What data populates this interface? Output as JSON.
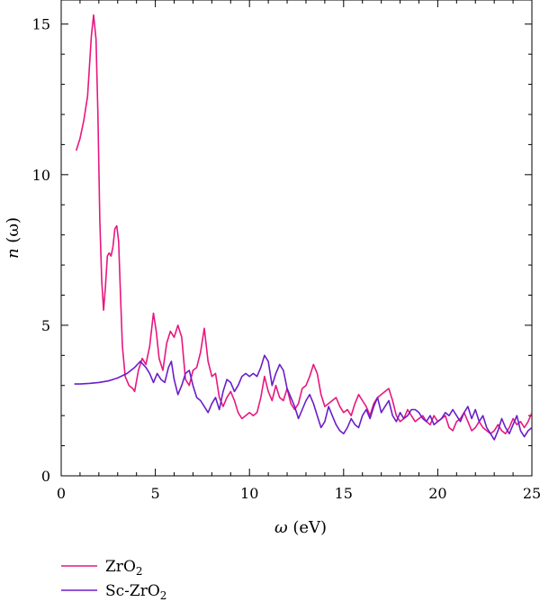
{
  "chart_data": {
    "type": "line",
    "xlabel_var": "ω",
    "xlabel_unit": "(eV)",
    "ylabel_var": "n",
    "ylabel_arg": "(ω)",
    "xlim": [
      0,
      25
    ],
    "ylim": [
      0,
      15.8
    ],
    "xticks": [
      0,
      5,
      10,
      15,
      20,
      25
    ],
    "yticks": [
      0,
      5,
      10,
      15
    ],
    "grid": false,
    "legend": "bottom-left, below plot",
    "series": [
      {
        "name": "ZrO",
        "name_sub": "2",
        "color": "#e8177f",
        "points": [
          [
            0.8,
            10.8
          ],
          [
            1.0,
            11.2
          ],
          [
            1.2,
            11.8
          ],
          [
            1.4,
            12.6
          ],
          [
            1.6,
            14.6
          ],
          [
            1.72,
            15.3
          ],
          [
            1.85,
            14.5
          ],
          [
            1.95,
            12.0
          ],
          [
            2.05,
            8.5
          ],
          [
            2.15,
            6.5
          ],
          [
            2.25,
            5.5
          ],
          [
            2.35,
            6.3
          ],
          [
            2.45,
            7.3
          ],
          [
            2.55,
            7.4
          ],
          [
            2.65,
            7.3
          ],
          [
            2.75,
            7.6
          ],
          [
            2.85,
            8.2
          ],
          [
            2.95,
            8.3
          ],
          [
            3.05,
            7.8
          ],
          [
            3.15,
            6.0
          ],
          [
            3.25,
            4.3
          ],
          [
            3.4,
            3.3
          ],
          [
            3.6,
            3.0
          ],
          [
            3.8,
            2.9
          ],
          [
            3.9,
            2.8
          ],
          [
            4.1,
            3.5
          ],
          [
            4.3,
            3.9
          ],
          [
            4.5,
            3.7
          ],
          [
            4.7,
            4.3
          ],
          [
            4.9,
            5.4
          ],
          [
            5.05,
            4.8
          ],
          [
            5.2,
            3.9
          ],
          [
            5.4,
            3.5
          ],
          [
            5.6,
            4.4
          ],
          [
            5.8,
            4.8
          ],
          [
            6.0,
            4.6
          ],
          [
            6.2,
            5.0
          ],
          [
            6.4,
            4.6
          ],
          [
            6.6,
            3.2
          ],
          [
            6.8,
            3.0
          ],
          [
            7.0,
            3.5
          ],
          [
            7.2,
            3.6
          ],
          [
            7.4,
            4.1
          ],
          [
            7.6,
            4.9
          ],
          [
            7.8,
            3.8
          ],
          [
            8.0,
            3.3
          ],
          [
            8.2,
            3.4
          ],
          [
            8.4,
            2.6
          ],
          [
            8.6,
            2.3
          ],
          [
            8.8,
            2.6
          ],
          [
            9.0,
            2.8
          ],
          [
            9.2,
            2.5
          ],
          [
            9.4,
            2.1
          ],
          [
            9.6,
            1.9
          ],
          [
            9.8,
            2.0
          ],
          [
            10.0,
            2.1
          ],
          [
            10.2,
            2.0
          ],
          [
            10.4,
            2.1
          ],
          [
            10.6,
            2.6
          ],
          [
            10.8,
            3.3
          ],
          [
            11.0,
            2.8
          ],
          [
            11.2,
            2.5
          ],
          [
            11.4,
            3.0
          ],
          [
            11.6,
            2.6
          ],
          [
            11.8,
            2.5
          ],
          [
            12.0,
            2.9
          ],
          [
            12.2,
            2.4
          ],
          [
            12.4,
            2.2
          ],
          [
            12.6,
            2.4
          ],
          [
            12.8,
            2.9
          ],
          [
            13.0,
            3.0
          ],
          [
            13.2,
            3.3
          ],
          [
            13.4,
            3.7
          ],
          [
            13.6,
            3.4
          ],
          [
            13.8,
            2.7
          ],
          [
            14.0,
            2.3
          ],
          [
            14.2,
            2.4
          ],
          [
            14.4,
            2.5
          ],
          [
            14.6,
            2.6
          ],
          [
            14.8,
            2.3
          ],
          [
            15.0,
            2.1
          ],
          [
            15.2,
            2.2
          ],
          [
            15.4,
            2.0
          ],
          [
            15.6,
            2.4
          ],
          [
            15.8,
            2.7
          ],
          [
            16.0,
            2.5
          ],
          [
            16.2,
            2.3
          ],
          [
            16.4,
            2.0
          ],
          [
            16.6,
            2.4
          ],
          [
            16.8,
            2.6
          ],
          [
            17.0,
            2.7
          ],
          [
            17.2,
            2.8
          ],
          [
            17.4,
            2.9
          ],
          [
            17.6,
            2.5
          ],
          [
            17.8,
            2.0
          ],
          [
            18.0,
            1.8
          ],
          [
            18.2,
            1.9
          ],
          [
            18.4,
            2.2
          ],
          [
            18.6,
            2.0
          ],
          [
            18.8,
            1.8
          ],
          [
            19.0,
            1.9
          ],
          [
            19.2,
            2.0
          ],
          [
            19.4,
            1.8
          ],
          [
            19.6,
            1.7
          ],
          [
            19.8,
            2.0
          ],
          [
            20.0,
            1.8
          ],
          [
            20.2,
            1.9
          ],
          [
            20.4,
            2.0
          ],
          [
            20.6,
            1.6
          ],
          [
            20.8,
            1.5
          ],
          [
            21.0,
            1.8
          ],
          [
            21.2,
            1.9
          ],
          [
            21.4,
            2.1
          ],
          [
            21.6,
            1.8
          ],
          [
            21.8,
            1.5
          ],
          [
            22.0,
            1.6
          ],
          [
            22.2,
            1.8
          ],
          [
            22.4,
            1.6
          ],
          [
            22.6,
            1.5
          ],
          [
            22.8,
            1.4
          ],
          [
            23.0,
            1.5
          ],
          [
            23.2,
            1.7
          ],
          [
            23.4,
            1.5
          ],
          [
            23.6,
            1.4
          ],
          [
            23.8,
            1.6
          ],
          [
            24.0,
            1.9
          ],
          [
            24.2,
            1.7
          ],
          [
            24.4,
            1.8
          ],
          [
            24.6,
            1.6
          ],
          [
            24.8,
            1.8
          ],
          [
            25.0,
            2.1
          ]
        ]
      },
      {
        "name": "Sc-ZrO",
        "name_sub": "2",
        "color": "#6a1ec8",
        "points": [
          [
            0.7,
            3.05
          ],
          [
            1.0,
            3.05
          ],
          [
            1.5,
            3.07
          ],
          [
            2.0,
            3.1
          ],
          [
            2.5,
            3.15
          ],
          [
            3.0,
            3.25
          ],
          [
            3.5,
            3.4
          ],
          [
            3.9,
            3.6
          ],
          [
            4.2,
            3.8
          ],
          [
            4.5,
            3.6
          ],
          [
            4.7,
            3.4
          ],
          [
            4.9,
            3.1
          ],
          [
            5.1,
            3.4
          ],
          [
            5.3,
            3.2
          ],
          [
            5.5,
            3.1
          ],
          [
            5.7,
            3.6
          ],
          [
            5.85,
            3.8
          ],
          [
            6.0,
            3.2
          ],
          [
            6.2,
            2.7
          ],
          [
            6.4,
            3.0
          ],
          [
            6.6,
            3.4
          ],
          [
            6.8,
            3.5
          ],
          [
            7.0,
            3.0
          ],
          [
            7.2,
            2.6
          ],
          [
            7.4,
            2.5
          ],
          [
            7.6,
            2.3
          ],
          [
            7.8,
            2.1
          ],
          [
            8.0,
            2.4
          ],
          [
            8.2,
            2.6
          ],
          [
            8.4,
            2.2
          ],
          [
            8.6,
            2.8
          ],
          [
            8.8,
            3.2
          ],
          [
            9.0,
            3.1
          ],
          [
            9.2,
            2.8
          ],
          [
            9.4,
            3.0
          ],
          [
            9.6,
            3.3
          ],
          [
            9.8,
            3.4
          ],
          [
            10.0,
            3.3
          ],
          [
            10.2,
            3.4
          ],
          [
            10.4,
            3.3
          ],
          [
            10.6,
            3.6
          ],
          [
            10.8,
            4.0
          ],
          [
            11.0,
            3.8
          ],
          [
            11.2,
            3.0
          ],
          [
            11.4,
            3.4
          ],
          [
            11.6,
            3.7
          ],
          [
            11.8,
            3.5
          ],
          [
            12.0,
            2.9
          ],
          [
            12.2,
            2.6
          ],
          [
            12.4,
            2.3
          ],
          [
            12.6,
            1.9
          ],
          [
            12.8,
            2.2
          ],
          [
            13.0,
            2.5
          ],
          [
            13.2,
            2.7
          ],
          [
            13.4,
            2.4
          ],
          [
            13.6,
            2.0
          ],
          [
            13.8,
            1.6
          ],
          [
            14.0,
            1.8
          ],
          [
            14.2,
            2.3
          ],
          [
            14.4,
            2.0
          ],
          [
            14.6,
            1.7
          ],
          [
            14.8,
            1.5
          ],
          [
            15.0,
            1.4
          ],
          [
            15.2,
            1.6
          ],
          [
            15.4,
            1.9
          ],
          [
            15.6,
            1.7
          ],
          [
            15.8,
            1.6
          ],
          [
            16.0,
            2.0
          ],
          [
            16.2,
            2.2
          ],
          [
            16.4,
            1.9
          ],
          [
            16.6,
            2.3
          ],
          [
            16.8,
            2.6
          ],
          [
            17.0,
            2.1
          ],
          [
            17.2,
            2.3
          ],
          [
            17.4,
            2.5
          ],
          [
            17.6,
            2.0
          ],
          [
            17.8,
            1.8
          ],
          [
            18.0,
            2.1
          ],
          [
            18.2,
            1.9
          ],
          [
            18.4,
            2.0
          ],
          [
            18.6,
            2.2
          ],
          [
            18.8,
            2.2
          ],
          [
            19.0,
            2.1
          ],
          [
            19.2,
            1.9
          ],
          [
            19.4,
            1.8
          ],
          [
            19.6,
            2.0
          ],
          [
            19.8,
            1.7
          ],
          [
            20.0,
            1.8
          ],
          [
            20.2,
            1.9
          ],
          [
            20.4,
            2.1
          ],
          [
            20.6,
            2.0
          ],
          [
            20.8,
            2.2
          ],
          [
            21.0,
            2.0
          ],
          [
            21.2,
            1.8
          ],
          [
            21.4,
            2.1
          ],
          [
            21.6,
            2.3
          ],
          [
            21.8,
            1.9
          ],
          [
            22.0,
            2.2
          ],
          [
            22.2,
            1.8
          ],
          [
            22.4,
            2.0
          ],
          [
            22.6,
            1.6
          ],
          [
            22.8,
            1.4
          ],
          [
            23.0,
            1.2
          ],
          [
            23.2,
            1.5
          ],
          [
            23.4,
            1.9
          ],
          [
            23.6,
            1.6
          ],
          [
            23.8,
            1.4
          ],
          [
            24.0,
            1.7
          ],
          [
            24.2,
            2.0
          ],
          [
            24.4,
            1.5
          ],
          [
            24.6,
            1.3
          ],
          [
            24.8,
            1.5
          ],
          [
            25.0,
            1.6
          ]
        ]
      }
    ]
  }
}
